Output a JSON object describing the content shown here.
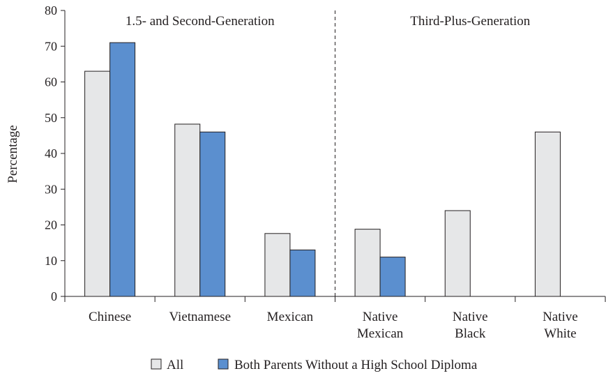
{
  "chart_data": {
    "type": "bar",
    "title": "",
    "xlabel": "",
    "ylabel": "Percentage",
    "ylim": [
      0,
      80
    ],
    "yticks": [
      "0",
      "10",
      "20",
      "30",
      "40",
      "50",
      "60",
      "70",
      "80"
    ],
    "grid": false,
    "legend_position": "bottom",
    "groups": [
      {
        "label": "1.5- and Second-Generation",
        "categories": [
          "Chinese",
          "Vietnamese",
          "Mexican"
        ]
      },
      {
        "label": "Third-Plus-Generation",
        "categories": [
          "Native Mexican",
          "Native Black",
          "Native White"
        ]
      }
    ],
    "categories": [
      [
        "Chinese"
      ],
      [
        "Vietnamese"
      ],
      [
        "Mexican"
      ],
      [
        "Native",
        "Mexican"
      ],
      [
        "Native",
        "Black"
      ],
      [
        "Native",
        "White"
      ]
    ],
    "series": [
      {
        "name": "All",
        "color": "#e6e7e8",
        "values": [
          63,
          48.2,
          17.6,
          18.8,
          24,
          46
        ]
      },
      {
        "name": "Both Parents Without a High School Diploma",
        "color": "#5b8fcf",
        "values": [
          71,
          46,
          13,
          11,
          null,
          null
        ]
      }
    ]
  }
}
